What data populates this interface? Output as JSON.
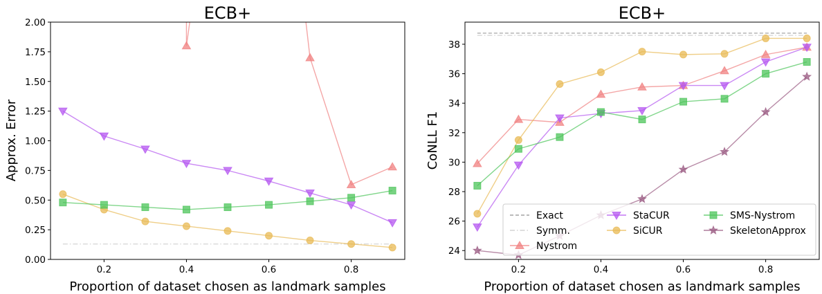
{
  "chart_data": [
    {
      "type": "line",
      "title": "ECB+",
      "xlabel": "Proportion of dataset chosen as landmark samples",
      "ylabel": "Approx. Error",
      "xlim": [
        0.07,
        0.93
      ],
      "ylim": [
        0,
        2.0
      ],
      "xticks": [
        0.2,
        0.4,
        0.6,
        0.8
      ],
      "yticks": [
        0.0,
        0.25,
        0.5,
        0.75,
        1.0,
        1.25,
        1.5,
        1.75,
        2.0
      ],
      "xtick_labels": [
        "0.2",
        "0.4",
        "0.6",
        "0.8"
      ],
      "ytick_labels": [
        "0.00",
        "0.25",
        "0.50",
        "0.75",
        "1.00",
        "1.25",
        "1.50",
        "1.75",
        "2.00"
      ],
      "grid": false,
      "series": [
        {
          "name": "Symm.",
          "color": "#c8c8c8",
          "style": "dashdot",
          "marker": "none",
          "x": [
            0.1,
            0.9
          ],
          "y": [
            0.13,
            0.13
          ]
        },
        {
          "name": "Nystrom",
          "color": "#f08080",
          "style": "solid",
          "marker": "triangle-up",
          "x": [
            0.4,
            0.4,
            0.42,
            0.68,
            0.7,
            0.8,
            0.9
          ],
          "y": [
            2.3,
            1.8,
            2.3,
            2.3,
            1.7,
            0.63,
            0.78
          ],
          "marker_mask": [
            false,
            true,
            false,
            false,
            true,
            true,
            true
          ]
        },
        {
          "name": "StaCUR",
          "color": "#b455f0",
          "style": "solid",
          "marker": "triangle-down",
          "x": [
            0.1,
            0.2,
            0.3,
            0.4,
            0.5,
            0.6,
            0.7,
            0.8,
            0.9
          ],
          "y": [
            1.25,
            1.04,
            0.93,
            0.81,
            0.75,
            0.66,
            0.56,
            0.46,
            0.31
          ]
        },
        {
          "name": "SiCUR",
          "color": "#e8b954",
          "style": "solid",
          "marker": "circle",
          "x": [
            0.1,
            0.2,
            0.3,
            0.4,
            0.5,
            0.6,
            0.7,
            0.8,
            0.9
          ],
          "y": [
            0.55,
            0.42,
            0.32,
            0.28,
            0.24,
            0.2,
            0.16,
            0.13,
            0.1
          ]
        },
        {
          "name": "SMS-Nystrom",
          "color": "#4cc45a",
          "style": "solid",
          "marker": "square",
          "x": [
            0.1,
            0.2,
            0.3,
            0.4,
            0.5,
            0.6,
            0.7,
            0.8,
            0.9
          ],
          "y": [
            0.48,
            0.46,
            0.44,
            0.42,
            0.44,
            0.46,
            0.49,
            0.52,
            0.58
          ]
        }
      ]
    },
    {
      "type": "line",
      "title": "ECB+",
      "xlabel": "Proportion of dataset chosen as landmark samples",
      "ylabel": "CoNLL F1",
      "xlim": [
        0.07,
        0.93
      ],
      "ylim": [
        23.4,
        39.5
      ],
      "xticks": [
        0.2,
        0.4,
        0.6,
        0.8
      ],
      "yticks": [
        24,
        26,
        28,
        30,
        32,
        34,
        36,
        38
      ],
      "xtick_labels": [
        "0.2",
        "0.4",
        "0.6",
        "0.8"
      ],
      "ytick_labels": [
        "24",
        "26",
        "28",
        "30",
        "32",
        "34",
        "36",
        "38"
      ],
      "grid": false,
      "legend_position": "bottom-right",
      "legend": [
        {
          "label": "Exact",
          "series": "Exact"
        },
        {
          "label": "StaCUR",
          "series": "StaCUR"
        },
        {
          "label": "SMS-Nystrom",
          "series": "SMS-Nystrom"
        },
        {
          "label": "Symm.",
          "series": "Symm."
        },
        {
          "label": "SiCUR",
          "series": "SiCUR"
        },
        {
          "label": "SkeletonApprox",
          "series": "SkeletonApprox"
        },
        {
          "label": "Nystrom",
          "series": "Nystrom"
        }
      ],
      "series": [
        {
          "name": "Exact",
          "color": "#8c8c8c",
          "style": "dashed",
          "marker": "none",
          "x": [
            0.1,
            0.9
          ],
          "y": [
            38.75,
            38.75
          ]
        },
        {
          "name": "Symm.",
          "color": "#c8c8c8",
          "style": "dashdot",
          "marker": "none",
          "x": [
            0.1,
            0.9
          ],
          "y": [
            38.6,
            38.6
          ]
        },
        {
          "name": "Nystrom",
          "color": "#f08080",
          "style": "solid",
          "marker": "triangle-up",
          "x": [
            0.1,
            0.2,
            0.3,
            0.4,
            0.5,
            0.6,
            0.7,
            0.8,
            0.9
          ],
          "y": [
            29.9,
            32.9,
            32.7,
            34.6,
            35.1,
            35.2,
            36.2,
            37.3,
            37.8
          ]
        },
        {
          "name": "StaCUR",
          "color": "#b455f0",
          "style": "solid",
          "marker": "triangle-down",
          "x": [
            0.1,
            0.2,
            0.3,
            0.4,
            0.5,
            0.6,
            0.7,
            0.8,
            0.9
          ],
          "y": [
            25.6,
            29.8,
            33.0,
            33.3,
            33.5,
            35.2,
            35.2,
            36.8,
            37.8
          ]
        },
        {
          "name": "SiCUR",
          "color": "#e8b954",
          "style": "solid",
          "marker": "circle",
          "x": [
            0.1,
            0.2,
            0.3,
            0.4,
            0.5,
            0.6,
            0.7,
            0.8,
            0.9
          ],
          "y": [
            26.5,
            31.5,
            35.3,
            36.1,
            37.5,
            37.3,
            37.35,
            38.4,
            38.4
          ]
        },
        {
          "name": "SMS-Nystrom",
          "color": "#4cc45a",
          "style": "solid",
          "marker": "square",
          "x": [
            0.1,
            0.2,
            0.3,
            0.4,
            0.5,
            0.6,
            0.7,
            0.8,
            0.9
          ],
          "y": [
            28.4,
            30.9,
            31.7,
            33.4,
            32.9,
            34.1,
            34.3,
            36.0,
            36.8
          ]
        },
        {
          "name": "SkeletonApprox",
          "color": "#9a5a82",
          "style": "solid",
          "marker": "star",
          "x": [
            0.1,
            0.2,
            0.3,
            0.4,
            0.5,
            0.6,
            0.7,
            0.8,
            0.9
          ],
          "y": [
            24.0,
            23.7,
            25.0,
            26.4,
            27.5,
            29.5,
            30.7,
            33.4,
            35.8
          ]
        }
      ]
    }
  ]
}
